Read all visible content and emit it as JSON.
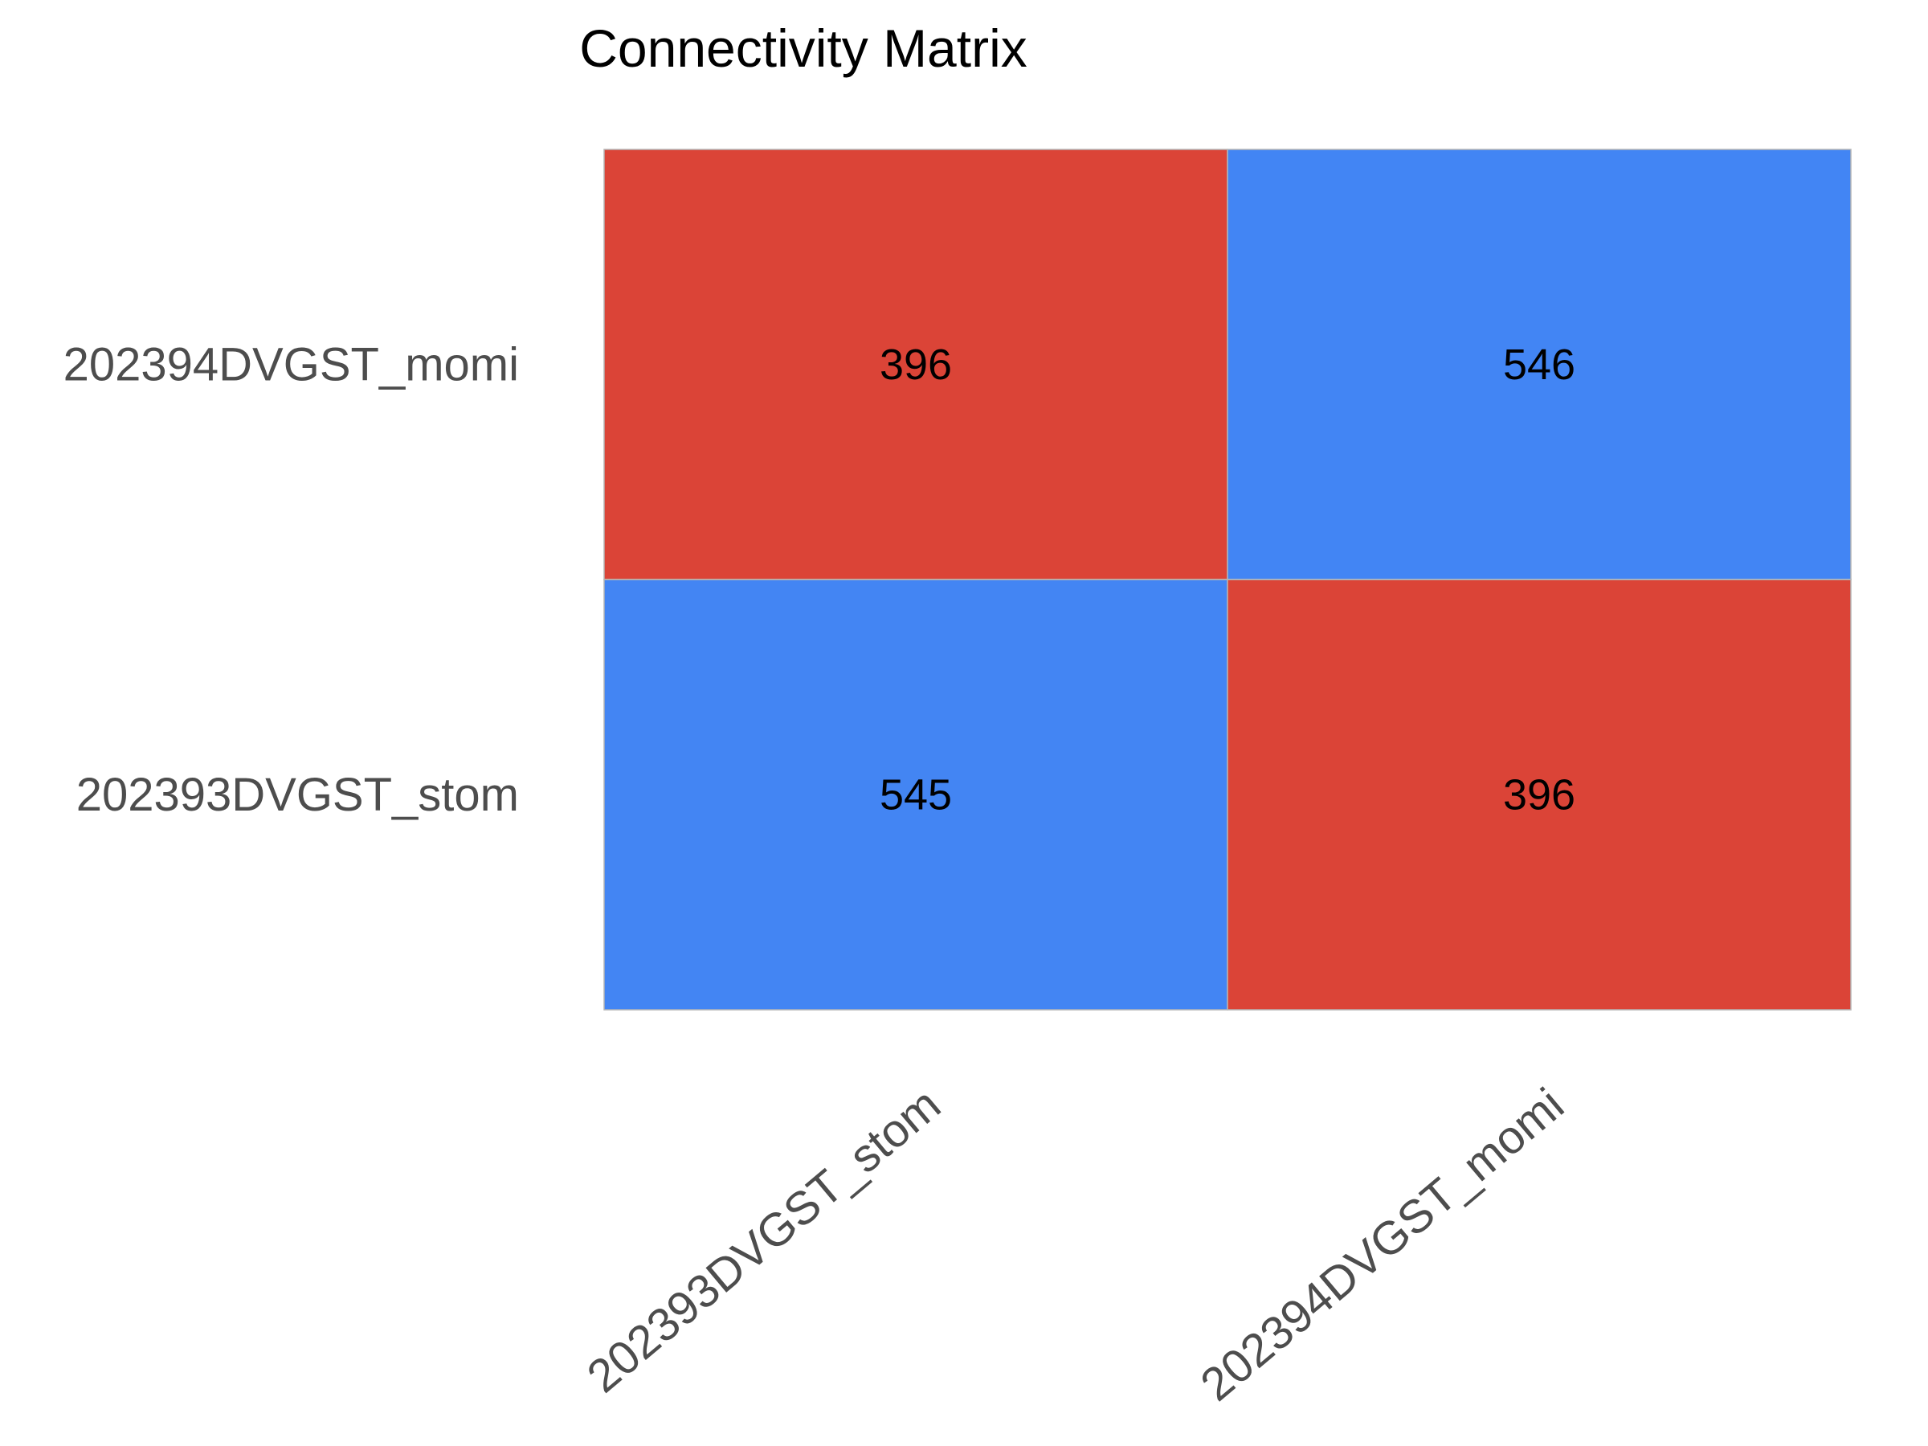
{
  "chart_data": {
    "type": "heatmap",
    "title": "Connectivity Matrix",
    "xlabel": "",
    "ylabel": "",
    "x_categories": [
      "202393DVGST_stom",
      "202394DVGST_momi"
    ],
    "y_categories": [
      "202394DVGST_momi",
      "202393DVGST_stom"
    ],
    "values": [
      [
        396,
        546
      ],
      [
        545,
        396
      ]
    ],
    "color_scale": {
      "low": "#db4437",
      "high": "#4285f4",
      "min": 396,
      "max": 546
    },
    "show_values": true,
    "grid": false,
    "legend": "none"
  }
}
